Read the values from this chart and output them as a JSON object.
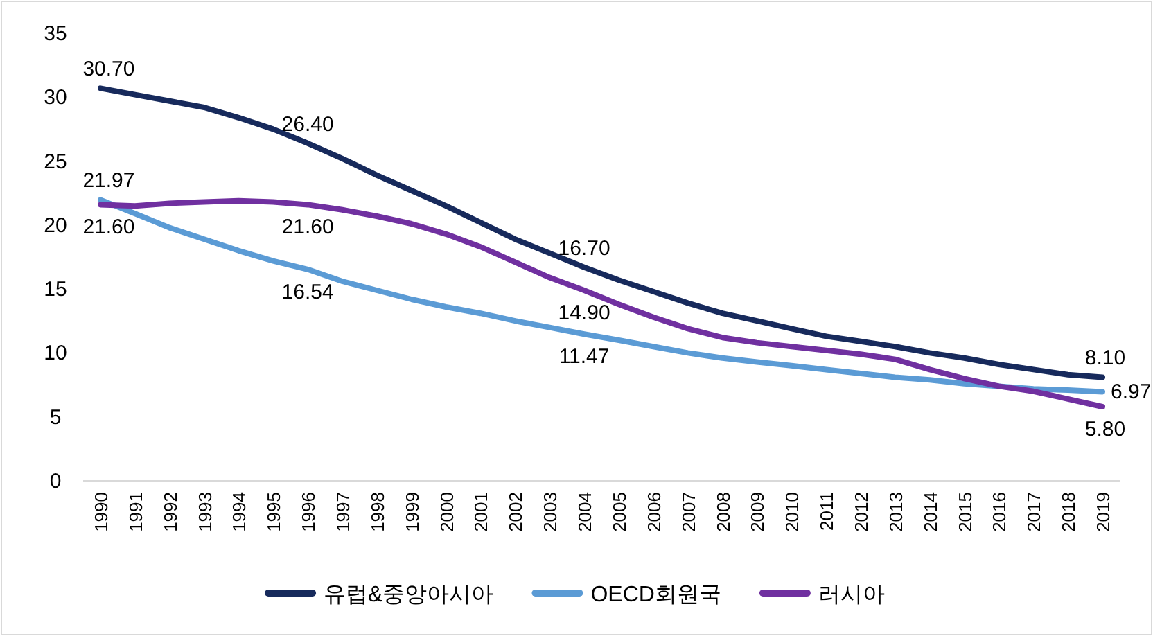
{
  "chart_data": {
    "type": "line",
    "categories": [
      "1990",
      "1991",
      "1992",
      "1993",
      "1994",
      "1995",
      "1996",
      "1997",
      "1998",
      "1999",
      "2000",
      "2001",
      "2002",
      "2003",
      "2004",
      "2005",
      "2006",
      "2007",
      "2008",
      "2009",
      "2010",
      "2011",
      "2012",
      "2013",
      "2014",
      "2015",
      "2016",
      "2017",
      "2018",
      "2019"
    ],
    "ylim": [
      0,
      35
    ],
    "yticks": [
      0,
      5,
      10,
      15,
      20,
      25,
      30,
      35
    ],
    "legend": "bottom",
    "line_style": "solid",
    "series": [
      {
        "name": "유럽&중앙아시아",
        "color": "#172a5c",
        "values": [
          30.7,
          30.2,
          29.7,
          29.2,
          28.4,
          27.5,
          26.4,
          25.2,
          23.9,
          22.7,
          21.5,
          20.2,
          18.9,
          17.8,
          16.7,
          15.7,
          14.8,
          13.9,
          13.1,
          12.5,
          11.9,
          11.3,
          10.9,
          10.5,
          10.0,
          9.6,
          9.1,
          8.7,
          8.3,
          8.1
        ],
        "value_labels": [
          "30.70",
          null,
          null,
          null,
          null,
          null,
          "26.40",
          null,
          null,
          null,
          null,
          null,
          null,
          null,
          "16.70",
          null,
          null,
          null,
          null,
          null,
          null,
          null,
          null,
          null,
          null,
          null,
          null,
          null,
          null,
          "8.10"
        ]
      },
      {
        "name": "OECD회원국",
        "color": "#5b9bd5",
        "values": [
          21.97,
          20.9,
          19.8,
          18.9,
          18.0,
          17.2,
          16.54,
          15.6,
          14.9,
          14.2,
          13.6,
          13.1,
          12.5,
          12.0,
          11.47,
          11.0,
          10.5,
          10.0,
          9.6,
          9.3,
          9.0,
          8.7,
          8.4,
          8.1,
          7.9,
          7.6,
          7.4,
          7.2,
          7.1,
          6.97
        ],
        "value_labels": [
          "21.97",
          null,
          null,
          null,
          null,
          null,
          "16.54",
          null,
          null,
          null,
          null,
          null,
          null,
          null,
          "11.47",
          null,
          null,
          null,
          null,
          null,
          null,
          null,
          null,
          null,
          null,
          null,
          null,
          null,
          null,
          "6.97"
        ]
      },
      {
        "name": "러시아",
        "color": "#7030a0",
        "values": [
          21.6,
          21.5,
          21.7,
          21.8,
          21.9,
          21.8,
          21.6,
          21.2,
          20.7,
          20.1,
          19.3,
          18.3,
          17.1,
          15.9,
          14.9,
          13.8,
          12.8,
          11.9,
          11.2,
          10.8,
          10.5,
          10.2,
          9.9,
          9.5,
          8.7,
          8.0,
          7.4,
          7.0,
          6.4,
          5.8
        ],
        "value_labels": [
          "21.60",
          null,
          null,
          null,
          null,
          null,
          "21.60",
          null,
          null,
          null,
          null,
          null,
          null,
          null,
          "14.90",
          null,
          null,
          null,
          null,
          null,
          null,
          null,
          null,
          null,
          null,
          null,
          null,
          null,
          null,
          "5.80"
        ]
      }
    ]
  }
}
